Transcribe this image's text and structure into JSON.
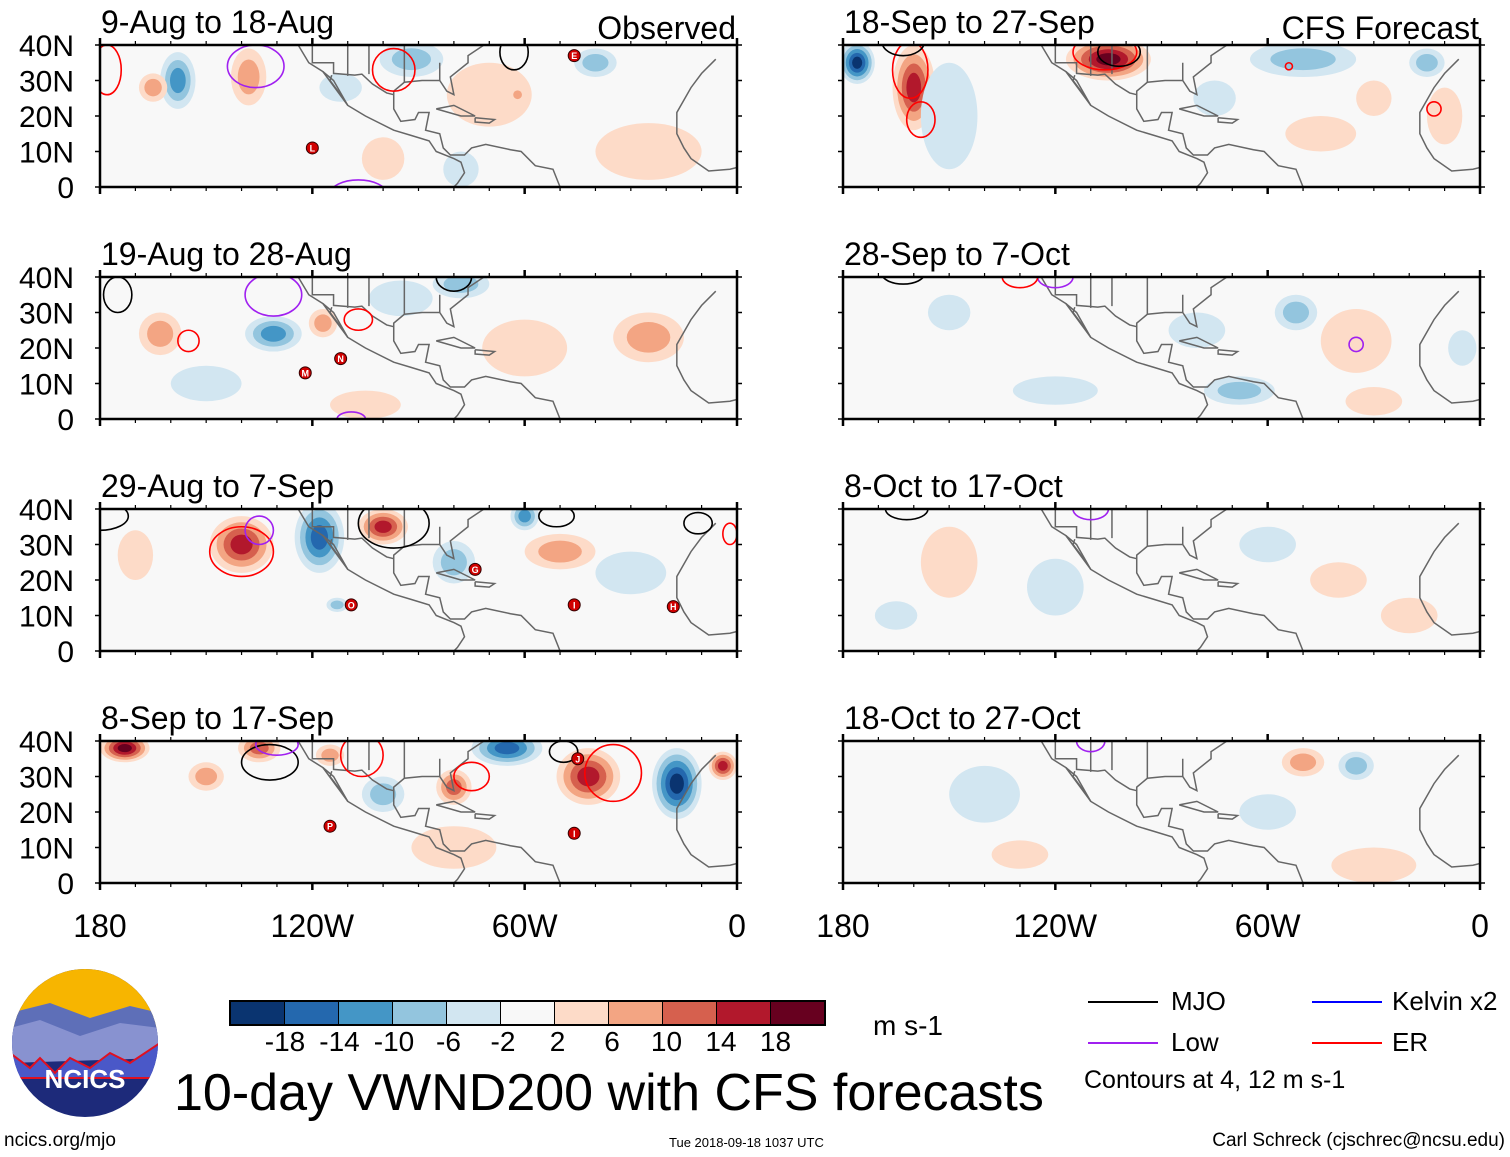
{
  "chart_data": {
    "type": "heatmap",
    "title": "10-day VWND200 with CFS forecasts",
    "units": "m s-1",
    "column_headers": [
      "Observed",
      "CFS Forecast"
    ],
    "xlim": [
      -180,
      0
    ],
    "ylim": [
      0,
      40
    ],
    "x_tick_labels": [
      "180",
      "120W",
      "60W",
      "0"
    ],
    "x_tick_values": [
      -180,
      -120,
      -60,
      0
    ],
    "y_tick_labels": [
      "0",
      "10N",
      "20N",
      "30N",
      "40N"
    ],
    "y_tick_values": [
      0,
      10,
      20,
      30,
      40
    ],
    "colorbar": {
      "levels": [
        -18,
        -14,
        -10,
        -6,
        -2,
        2,
        6,
        10,
        14,
        18
      ],
      "level_labels": [
        "-18",
        "-14",
        "-10",
        "-6",
        "-2",
        "2",
        "6",
        "10",
        "14",
        "18"
      ],
      "colors": [
        "#0a3470",
        "#2468ae",
        "#4496c6",
        "#93c5de",
        "#d2e6f1",
        "#f8f8f8",
        "#fddbc8",
        "#f3a583",
        "#d6604e",
        "#b2182c",
        "#67001f"
      ]
    },
    "legend": {
      "items": [
        {
          "label": "MJO",
          "color": "#000000"
        },
        {
          "label": "Kelvin x2",
          "color": "#0000ff"
        },
        {
          "label": "Low",
          "color": "#a020f0"
        },
        {
          "label": "ER",
          "color": "#ff0000"
        }
      ],
      "contour_note": "Contours at 4, 12 m s-1"
    },
    "panels": [
      {
        "title": "9-Aug to 18-Aug",
        "column": "Observed",
        "anomalies": [
          [
            -158,
            30,
            5,
            8,
            -12
          ],
          [
            -138,
            31,
            5,
            8,
            8
          ],
          [
            -112,
            28,
            6,
            4,
            -4
          ],
          [
            -92,
            36,
            9,
            5,
            -8
          ],
          [
            -70,
            26,
            12,
            9,
            5
          ],
          [
            -62,
            26,
            2,
            2,
            8
          ],
          [
            -165,
            28,
            4,
            4,
            6
          ],
          [
            -100,
            8,
            6,
            6,
            4
          ],
          [
            -25,
            10,
            15,
            8,
            5
          ],
          [
            -40,
            35,
            6,
            4,
            -6
          ],
          [
            -78,
            5,
            5,
            5,
            -4
          ]
        ],
        "contours": [
          [
            -136,
            34,
            8,
            6,
            "#a020f0"
          ],
          [
            -97,
            33,
            6,
            6,
            "#ff0000"
          ],
          [
            -63,
            38,
            4,
            5,
            "#000000"
          ],
          [
            -107,
            -2,
            8,
            4,
            "#a020f0"
          ],
          [
            -178,
            33,
            4,
            7,
            "#ff0000"
          ]
        ],
        "storms": [
          [
            "E",
            -46,
            37
          ],
          [
            "L",
            -120,
            11
          ]
        ]
      },
      {
        "title": "19-Aug to 28-Aug",
        "column": "Observed",
        "anomalies": [
          [
            -131,
            24,
            8,
            5,
            -12
          ],
          [
            -163,
            24,
            6,
            6,
            7
          ],
          [
            -117,
            27,
            4,
            4,
            8
          ],
          [
            -95,
            34,
            9,
            5,
            -4
          ],
          [
            -25,
            23,
            10,
            7,
            8
          ],
          [
            -78,
            38,
            8,
            4,
            -6
          ],
          [
            -60,
            20,
            12,
            8,
            4
          ],
          [
            -105,
            4,
            10,
            4,
            4
          ],
          [
            -150,
            10,
            10,
            5,
            -3
          ]
        ],
        "contours": [
          [
            -155,
            22,
            3,
            3,
            "#ff0000"
          ],
          [
            -107,
            28,
            4,
            3,
            "#ff0000"
          ],
          [
            -131,
            35,
            8,
            6,
            "#a020f0"
          ],
          [
            -80,
            40,
            5,
            4,
            "#000000"
          ],
          [
            -175,
            35,
            4,
            5,
            "#000000"
          ],
          [
            -109,
            0,
            4,
            2,
            "#a020f0"
          ]
        ],
        "storms": [
          [
            "M",
            -122,
            13
          ],
          [
            "N",
            -112,
            17
          ]
        ]
      },
      {
        "title": "29-Aug to 7-Sep",
        "column": "Observed",
        "anomalies": [
          [
            -140,
            30,
            9,
            8,
            16
          ],
          [
            -118,
            32,
            7,
            10,
            -16
          ],
          [
            -100,
            35,
            7,
            5,
            14
          ],
          [
            -60,
            38,
            4,
            4,
            -10
          ],
          [
            -50,
            28,
            10,
            5,
            7
          ],
          [
            -80,
            25,
            6,
            6,
            -6
          ],
          [
            -170,
            27,
            5,
            7,
            5
          ],
          [
            -113,
            13,
            3,
            2,
            -6
          ],
          [
            -30,
            22,
            10,
            6,
            -4
          ]
        ],
        "contours": [
          [
            -140,
            28,
            9,
            7,
            "#ff0000"
          ],
          [
            -135,
            34,
            4,
            4,
            "#a020f0"
          ],
          [
            -97,
            36,
            10,
            7,
            "#000000"
          ],
          [
            -51,
            38,
            5,
            3,
            "#000000"
          ],
          [
            -11,
            36,
            4,
            3,
            "#000000"
          ],
          [
            -2,
            33,
            2,
            3,
            "#ff0000"
          ],
          [
            -180,
            38,
            8,
            4,
            "#000000"
          ]
        ],
        "storms": [
          [
            "G",
            -74,
            23
          ],
          [
            "O",
            -109,
            13
          ],
          [
            "I",
            -46,
            13
          ],
          [
            "H",
            -18,
            12.5
          ]
        ]
      },
      {
        "title": "8-Sep to 17-Sep",
        "column": "Observed",
        "anomalies": [
          [
            -173,
            38,
            7,
            4,
            18
          ],
          [
            -135,
            38,
            6,
            4,
            10
          ],
          [
            -115,
            36,
            4,
            3,
            8
          ],
          [
            -65,
            38,
            10,
            5,
            -14
          ],
          [
            -42,
            30,
            9,
            8,
            14
          ],
          [
            -17,
            28,
            7,
            10,
            -18
          ],
          [
            -80,
            27,
            5,
            5,
            10
          ],
          [
            -100,
            25,
            6,
            5,
            -6
          ],
          [
            -4,
            33,
            4,
            4,
            14
          ],
          [
            -150,
            30,
            5,
            4,
            6
          ],
          [
            -80,
            10,
            12,
            6,
            4
          ]
        ],
        "contours": [
          [
            -35,
            31,
            8,
            8,
            "#ff0000"
          ],
          [
            -49,
            37,
            4,
            3,
            "#000000"
          ],
          [
            -132,
            34,
            8,
            5,
            "#000000"
          ],
          [
            -130,
            39,
            6,
            3,
            "#a020f0"
          ],
          [
            -106,
            36,
            6,
            6,
            "#ff0000"
          ],
          [
            -75,
            30,
            5,
            4,
            "#ff0000"
          ]
        ],
        "storms": [
          [
            "P",
            -115,
            16
          ],
          [
            "J",
            -45,
            35
          ],
          [
            "I",
            -46,
            14
          ]
        ]
      },
      {
        "title": "18-Sep to 27-Sep",
        "column": "CFS Forecast",
        "anomalies": [
          [
            -176,
            35,
            5,
            6,
            -20
          ],
          [
            -160,
            28,
            6,
            12,
            16
          ],
          [
            -105,
            36,
            12,
            6,
            18
          ],
          [
            -150,
            20,
            8,
            15,
            -4
          ],
          [
            -50,
            36,
            15,
            5,
            -8
          ],
          [
            -30,
            25,
            5,
            5,
            4
          ],
          [
            -15,
            35,
            5,
            4,
            -6
          ],
          [
            -10,
            20,
            5,
            8,
            5
          ],
          [
            -75,
            25,
            6,
            5,
            -4
          ],
          [
            -45,
            15,
            10,
            5,
            3
          ]
        ],
        "contours": [
          [
            -161,
            33,
            5,
            8,
            "#ff0000"
          ],
          [
            -158,
            19,
            4,
            5,
            "#ff0000"
          ],
          [
            -106,
            38,
            9,
            5,
            "#ff0000"
          ],
          [
            -102,
            38,
            6,
            4,
            "#000000"
          ],
          [
            -163,
            41,
            6,
            4,
            "#000000"
          ],
          [
            -13,
            22,
            2,
            2,
            "#ff0000"
          ],
          [
            -54,
            34,
            1,
            1,
            "#ff0000"
          ]
        ],
        "storms": []
      },
      {
        "title": "28-Sep to 7-Oct",
        "column": "CFS Forecast",
        "anomalies": [
          [
            -52,
            30,
            6,
            5,
            -8
          ],
          [
            -35,
            22,
            10,
            9,
            5
          ],
          [
            -80,
            25,
            8,
            5,
            -4
          ],
          [
            -68,
            8,
            10,
            4,
            -6
          ],
          [
            -120,
            8,
            12,
            4,
            -3
          ],
          [
            -150,
            30,
            6,
            5,
            -4
          ],
          [
            -30,
            5,
            8,
            4,
            4
          ],
          [
            -5,
            20,
            4,
            5,
            -5
          ]
        ],
        "contours": [
          [
            -35,
            21,
            2,
            2,
            "#a020f0"
          ],
          [
            -120,
            40,
            5,
            3,
            "#a020f0"
          ],
          [
            -163,
            41,
            6,
            3,
            "#000000"
          ],
          [
            -130,
            40,
            5,
            3,
            "#ff0000"
          ]
        ],
        "storms": []
      },
      {
        "title": "8-Oct to 17-Oct",
        "column": "CFS Forecast",
        "anomalies": [
          [
            -150,
            25,
            8,
            10,
            3
          ],
          [
            -120,
            18,
            8,
            8,
            -3
          ],
          [
            -60,
            30,
            8,
            5,
            -3
          ],
          [
            -40,
            20,
            8,
            5,
            3
          ],
          [
            -20,
            10,
            8,
            5,
            3
          ],
          [
            -165,
            10,
            6,
            4,
            -3
          ]
        ],
        "contours": [
          [
            -110,
            40,
            5,
            3,
            "#a020f0"
          ],
          [
            -162,
            40,
            6,
            3,
            "#000000"
          ]
        ],
        "storms": []
      },
      {
        "title": "18-Oct to 27-Oct",
        "column": "CFS Forecast",
        "anomalies": [
          [
            -50,
            34,
            6,
            4,
            6
          ],
          [
            -35,
            33,
            5,
            4,
            -6
          ],
          [
            -140,
            25,
            10,
            8,
            -3
          ],
          [
            -60,
            20,
            8,
            5,
            -3
          ],
          [
            -30,
            5,
            12,
            5,
            4
          ],
          [
            -130,
            8,
            8,
            4,
            3
          ]
        ],
        "contours": [
          [
            -110,
            40,
            4,
            3,
            "#a020f0"
          ]
        ],
        "storms": []
      }
    ]
  },
  "footer": {
    "logo_text": "NCICS",
    "site": "ncics.org/mjo",
    "timestamp": "Tue 2018-09-18 1037 UTC",
    "author": "Carl Schreck (cjschrec@ncsu.edu)"
  }
}
